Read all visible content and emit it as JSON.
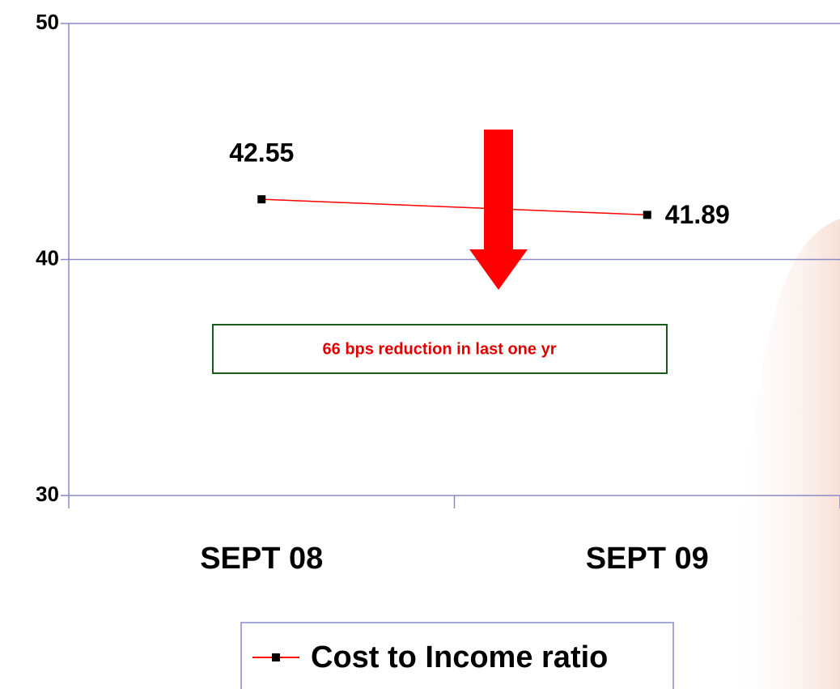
{
  "chart_data": {
    "type": "line",
    "categories": [
      "SEPT 08",
      "SEPT 09"
    ],
    "series": [
      {
        "name": "Cost to Income ratio",
        "color": "#ff0000",
        "marker_color": "#000000",
        "values": [
          42.55,
          41.89
        ]
      }
    ],
    "ylim": [
      30,
      50
    ],
    "yticks": [
      30,
      40,
      50
    ],
    "grid": true,
    "grid_color": "#8a8ac8",
    "annotation": "66 bps reduction in last one yr",
    "legend": "bottom"
  }
}
